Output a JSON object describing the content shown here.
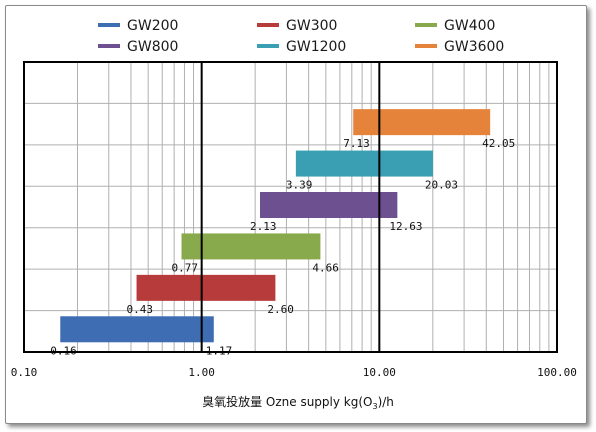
{
  "chart_data": {
    "type": "bar",
    "orientation": "horizontal-range",
    "x_scale": "log",
    "xlim": [
      0.1,
      100
    ],
    "x_ticks": [
      "0.10",
      "1.00",
      "10.00",
      "100.00"
    ],
    "xlabel": "臭氧投放量 Ozne supply  kg(O",
    "xlabel_sub": "3",
    "xlabel_suffix": ")/h",
    "grid": true,
    "legend_position": "top",
    "series": [
      {
        "name": "GW200",
        "min": 0.16,
        "max": 1.17,
        "min_label": "0.16",
        "max_label": "1.17",
        "color": "#3f6db3"
      },
      {
        "name": "GW300",
        "min": 0.43,
        "max": 2.6,
        "min_label": "0.43",
        "max_label": "2.60",
        "color": "#b83b3b"
      },
      {
        "name": "GW400",
        "min": 0.77,
        "max": 4.66,
        "min_label": "0.77",
        "max_label": "4.66",
        "color": "#89aa4c"
      },
      {
        "name": "GW800",
        "min": 2.13,
        "max": 12.63,
        "min_label": "2.13",
        "max_label": "12.63",
        "color": "#6c5090"
      },
      {
        "name": "GW1200",
        "min": 3.39,
        "max": 20.03,
        "min_label": "3.39",
        "max_label": "20.03",
        "color": "#3a9fb3"
      },
      {
        "name": "GW3600",
        "min": 7.13,
        "max": 42.05,
        "min_label": "7.13",
        "max_label": "42.05",
        "color": "#e5833a"
      }
    ]
  }
}
